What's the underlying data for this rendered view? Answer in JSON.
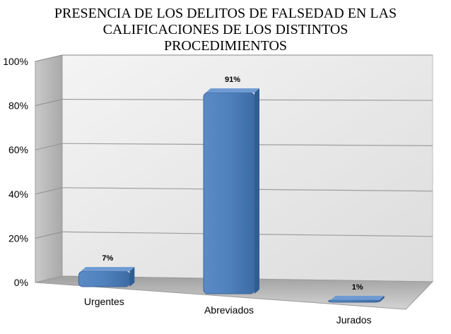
{
  "chart_data": {
    "type": "bar",
    "title_lines": [
      "PRESENCIA DE LOS DELITOS DE FALSEDAD EN LAS",
      "CALIFICACIONES DE LOS DISTINTOS",
      "PROCEDIMIENTOS"
    ],
    "categories": [
      "Urgentes",
      "Abreviados",
      "Jurados"
    ],
    "values": [
      7,
      91,
      1
    ],
    "data_labels": [
      "7%",
      "91%",
      "1%"
    ],
    "y_ticks": [
      "0%",
      "20%",
      "40%",
      "60%",
      "80%",
      "100%"
    ],
    "ylim": [
      0,
      100
    ],
    "grid": true,
    "legend": "none",
    "three_d": true,
    "bar_color": "#4f81bd",
    "bar_top_color": "#6f9bd2",
    "bar_side_color": "#2f5d94",
    "wall_color": "#e9e9e9",
    "floor_color": "#c7c7c7"
  }
}
